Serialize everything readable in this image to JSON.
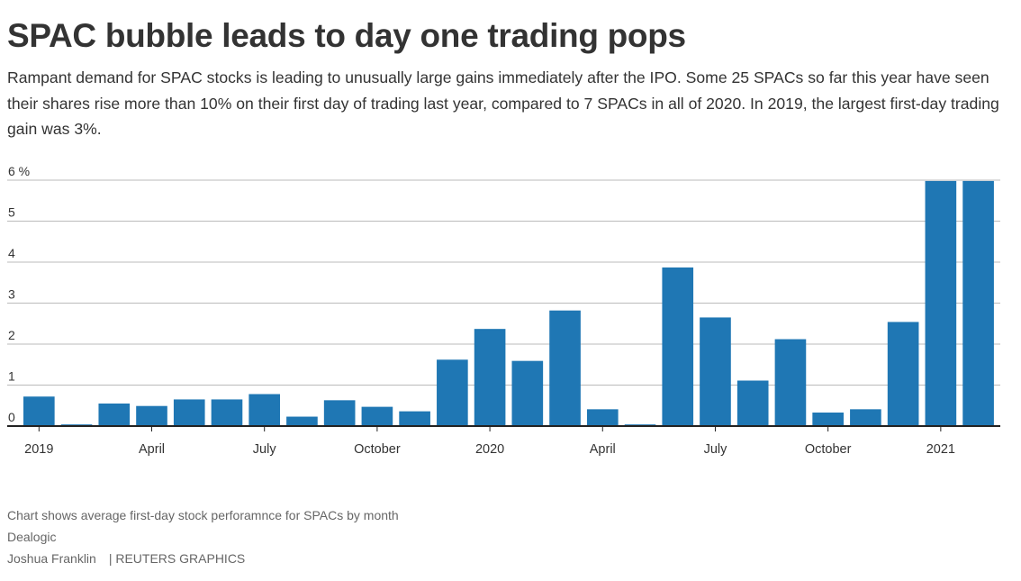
{
  "title": "SPAC bubble leads to day one trading pops",
  "subtitle": "Rampant demand for SPAC stocks is leading to unusually large gains immediately after the IPO. Some 25 SPACs so far this year have seen their shares rise more than 10% on their first day of trading last year, compared to 7 SPACs in all of 2020. In 2019, the largest first-day trading gain was 3%.",
  "footer": {
    "note": "Chart shows average first-day stock perforamnce for SPACs by month",
    "source": "Dealogic",
    "author": "Joshua Franklin",
    "separator": "|",
    "credit": "REUTERS GRAPHICS"
  },
  "colors": {
    "bar": "#1f77b4",
    "grid": "#bbbbbb",
    "axis": "#222222"
  },
  "chart_data": {
    "type": "bar",
    "categories": [
      "2019-01",
      "2019-02",
      "2019-03",
      "2019-04",
      "2019-05",
      "2019-06",
      "2019-07",
      "2019-08",
      "2019-09",
      "2019-10",
      "2019-11",
      "2019-12",
      "2020-01",
      "2020-02",
      "2020-03",
      "2020-04",
      "2020-05",
      "2020-06",
      "2020-07",
      "2020-08",
      "2020-09",
      "2020-10",
      "2020-11",
      "2020-12",
      "2021-01",
      "2021-02"
    ],
    "values": [
      0.72,
      0.04,
      0.55,
      0.49,
      0.65,
      0.65,
      0.78,
      0.23,
      0.63,
      0.47,
      0.36,
      1.62,
      2.37,
      1.59,
      2.82,
      0.41,
      0.04,
      3.87,
      2.65,
      1.11,
      2.12,
      0.33,
      0.41,
      2.54,
      5.98,
      5.98
    ],
    "ylim": [
      0,
      6
    ],
    "yticks": [
      0,
      1,
      2,
      3,
      4,
      5,
      6
    ],
    "ytick_labels": [
      "0",
      "1",
      "2",
      "3",
      "4",
      "5",
      "6 %"
    ],
    "xticks": [
      {
        "at": 0,
        "label": "2019"
      },
      {
        "at": 3,
        "label": "April"
      },
      {
        "at": 6,
        "label": "July"
      },
      {
        "at": 9,
        "label": "October"
      },
      {
        "at": 12,
        "label": "2020"
      },
      {
        "at": 15,
        "label": "April"
      },
      {
        "at": 18,
        "label": "July"
      },
      {
        "at": 21,
        "label": "October"
      },
      {
        "at": 24,
        "label": "2021"
      }
    ],
    "grid": true,
    "legend": "none"
  }
}
